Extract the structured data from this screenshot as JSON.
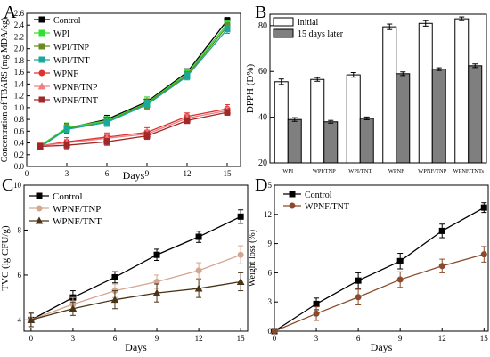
{
  "panels": {
    "A": "A",
    "B": "B",
    "C": "C",
    "D": "D"
  },
  "chart_data": [
    {
      "panel": "A",
      "type": "line",
      "xlabel": "Days",
      "ylabel": "Concentration of TBARS (mg MDA/kg)",
      "xlim": [
        0,
        16
      ],
      "ylim": [
        0,
        2.6
      ],
      "xticks": [
        0,
        3,
        6,
        9,
        12,
        15
      ],
      "yticks": [
        0.0,
        0.2,
        0.4,
        0.6,
        0.8,
        1.0,
        1.2,
        1.4,
        1.6,
        1.8,
        2.0,
        2.2,
        2.4,
        2.6
      ],
      "ytick_labels": [
        "0.0",
        "0.2",
        "0.4",
        "0.6",
        "0.8",
        "1.0",
        "1.2",
        "1.4",
        "1.6",
        "1.8",
        "2.0",
        "2.2",
        "2.4",
        "2.6"
      ],
      "x": [
        1,
        3,
        6,
        9,
        12,
        15
      ],
      "series": [
        {
          "name": "Control",
          "color": "#000000",
          "marker": "square",
          "values": [
            0.35,
            0.65,
            0.8,
            1.1,
            1.6,
            2.48
          ],
          "err": [
            0.05,
            0.08,
            0.07,
            0.08,
            0.06,
            0.05
          ]
        },
        {
          "name": "WPI",
          "color": "#33dd33",
          "marker": "square",
          "values": [
            0.35,
            0.66,
            0.78,
            1.08,
            1.58,
            2.42
          ],
          "err": [
            0.05,
            0.08,
            0.07,
            0.1,
            0.06,
            0.06
          ]
        },
        {
          "name": "WPI/TNP",
          "color": "#6a8a1f",
          "marker": "square",
          "values": [
            0.33,
            0.64,
            0.76,
            1.07,
            1.55,
            2.38
          ],
          "err": [
            0.05,
            0.08,
            0.07,
            0.08,
            0.06,
            0.06
          ]
        },
        {
          "name": "WPI/TNT",
          "color": "#1aa89a",
          "marker": "square",
          "values": [
            0.33,
            0.63,
            0.75,
            1.05,
            1.53,
            2.33
          ],
          "err": [
            0.05,
            0.07,
            0.07,
            0.08,
            0.06,
            0.07
          ]
        },
        {
          "name": "WPNF",
          "color": "#e03030",
          "marker": "circle",
          "values": [
            0.35,
            0.42,
            0.5,
            0.58,
            0.85,
            0.98
          ],
          "err": [
            0.05,
            0.07,
            0.07,
            0.08,
            0.06,
            0.07
          ]
        },
        {
          "name": "WPNF/TNP",
          "color": "#f08080",
          "marker": "triangle",
          "values": [
            0.35,
            0.4,
            0.48,
            0.55,
            0.82,
            0.95
          ],
          "err": [
            0.05,
            0.06,
            0.06,
            0.07,
            0.06,
            0.06
          ]
        },
        {
          "name": "WPNF/TNT",
          "color": "#a02828",
          "marker": "square",
          "values": [
            0.34,
            0.36,
            0.42,
            0.52,
            0.78,
            0.92
          ],
          "err": [
            0.05,
            0.06,
            0.06,
            0.06,
            0.05,
            0.05
          ]
        }
      ]
    },
    {
      "panel": "B",
      "type": "bar",
      "xlabel": "",
      "ylabel": "DPPH (D%)",
      "ylim": [
        20,
        85
      ],
      "yticks": [
        20,
        40,
        60,
        80
      ],
      "ytick_labels": [
        "20",
        "40",
        "60",
        "80"
      ],
      "categories": [
        "WPI",
        "WPI/TNP",
        "WPI/TNT",
        "WPNF",
        "WPNF/TNP",
        "WPNF/TNTs"
      ],
      "legend_position": "top-left",
      "series": [
        {
          "name": "initial",
          "color": "#ffffff",
          "values": [
            55.5,
            56.5,
            58.5,
            79.5,
            81.0,
            83.0
          ],
          "err": [
            1.2,
            0.8,
            1.0,
            1.2,
            1.2,
            0.8
          ]
        },
        {
          "name": "15 days later",
          "color": "#7f7f7f",
          "values": [
            39.0,
            38.0,
            39.5,
            59.0,
            61.0,
            62.5
          ],
          "err": [
            0.8,
            0.6,
            0.6,
            0.8,
            0.6,
            0.8
          ]
        }
      ]
    },
    {
      "panel": "C",
      "type": "line",
      "xlabel": "Days",
      "ylabel": "TVC (lg CFU/g)",
      "xlim": [
        -0.5,
        15.5
      ],
      "ylim": [
        3.5,
        10
      ],
      "xticks": [
        0,
        3,
        6,
        9,
        12,
        15
      ],
      "yticks": [
        4,
        6,
        8,
        10
      ],
      "ytick_labels": [
        "4",
        "6",
        "8",
        "10"
      ],
      "x": [
        0,
        3,
        6,
        9,
        12,
        15
      ],
      "series": [
        {
          "name": "Control",
          "color": "#000000",
          "marker": "square",
          "values": [
            4.0,
            5.0,
            5.9,
            6.9,
            7.7,
            8.6
          ],
          "err": [
            0.3,
            0.3,
            0.25,
            0.25,
            0.25,
            0.3
          ]
        },
        {
          "name": "WPNF/TNP",
          "color": "#d4a690",
          "marker": "circle",
          "values": [
            4.0,
            4.7,
            5.3,
            5.7,
            6.2,
            6.9
          ],
          "err": [
            0.3,
            0.3,
            0.3,
            0.3,
            0.35,
            0.4
          ]
        },
        {
          "name": "WPNF/TNT",
          "color": "#4a3418",
          "marker": "triangle",
          "values": [
            4.0,
            4.5,
            4.9,
            5.2,
            5.4,
            5.7
          ],
          "err": [
            0.3,
            0.3,
            0.4,
            0.4,
            0.4,
            0.4
          ]
        }
      ]
    },
    {
      "panel": "D",
      "type": "line",
      "xlabel": "Days",
      "ylabel": "Weight loss (%)",
      "xlim": [
        0,
        15.3
      ],
      "ylim": [
        0,
        15
      ],
      "xticks": [
        0,
        3,
        6,
        9,
        12,
        15
      ],
      "yticks": [
        0,
        3,
        6,
        9,
        12,
        15
      ],
      "ytick_labels": [
        "0",
        "3",
        "6",
        "9",
        "12",
        "15"
      ],
      "x": [
        0,
        3,
        6,
        9,
        12,
        15
      ],
      "series": [
        {
          "name": "Control",
          "color": "#000000",
          "marker": "square",
          "values": [
            0.0,
            2.8,
            5.2,
            7.2,
            10.3,
            12.7
          ],
          "err": [
            0.0,
            0.6,
            0.8,
            0.8,
            0.7,
            0.5
          ]
        },
        {
          "name": "WPNF/TNT",
          "color": "#8b4a2b",
          "marker": "circle",
          "values": [
            0.0,
            1.8,
            3.5,
            5.3,
            6.7,
            7.9
          ],
          "err": [
            0.0,
            0.7,
            0.8,
            0.8,
            0.7,
            0.8
          ]
        }
      ]
    }
  ]
}
